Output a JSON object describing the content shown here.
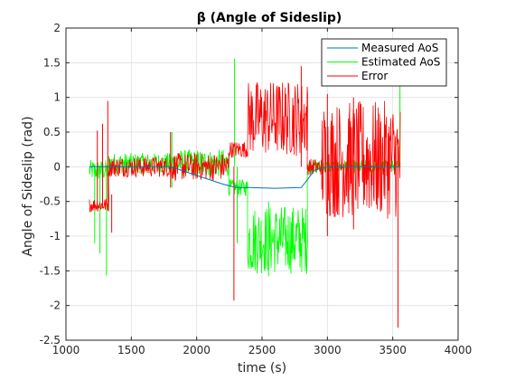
{
  "chart_data": {
    "type": "line",
    "title": "β (Angle of Sideslip)",
    "xlabel": "time (s)",
    "ylabel": "Angle of Sideslip (rad)",
    "xlim": [
      1000,
      4000
    ],
    "ylim": [
      -2.5,
      2
    ],
    "xticks": [
      1000,
      1500,
      2000,
      2500,
      3000,
      3500,
      4000
    ],
    "yticks": [
      -2.5,
      -2,
      -1.5,
      -1,
      -0.5,
      0,
      0.5,
      1,
      1.5,
      2
    ],
    "grid": true,
    "legend_position": "top-right",
    "colors": {
      "measured": "#0072BD",
      "estimated": "#00FF00",
      "error": "#FF0000"
    },
    "series": [
      {
        "name": "Measured AoS",
        "color": "#0072BD",
        "style": "line",
        "x": [
          1180,
          1400,
          1800,
          2200,
          2300,
          2400,
          2600,
          2800,
          2850,
          2900,
          3000,
          3200,
          3400,
          3560
        ],
        "y": [
          0,
          0,
          0,
          -0.25,
          -0.3,
          -0.3,
          -0.31,
          -0.3,
          -0.18,
          -0.05,
          0,
          0,
          0,
          0
        ]
      },
      {
        "name": "Estimated AoS",
        "color": "#00FF00",
        "style": "noisy-band",
        "segments": [
          {
            "x0": 1180,
            "x1": 1330,
            "center": -0.05,
            "amp": 0.15
          },
          {
            "x0": 1330,
            "x1": 1800,
            "center": 0.05,
            "amp": 0.15
          },
          {
            "x0": 1800,
            "x1": 2250,
            "center": 0.05,
            "amp": 0.2
          },
          {
            "x0": 2250,
            "x1": 2390,
            "center": -0.3,
            "amp": 0.12
          },
          {
            "x0": 2390,
            "x1": 2850,
            "center": -1.05,
            "amp": 0.5
          },
          {
            "x0": 2850,
            "x1": 3560,
            "center": 0.0,
            "amp": 0.1
          }
        ],
        "spikes": [
          {
            "x": 1220,
            "lo": -1.1,
            "hi": 0.0
          },
          {
            "x": 1260,
            "lo": -1.25,
            "hi": 0.0
          },
          {
            "x": 1310,
            "lo": -1.57,
            "hi": 0.0
          },
          {
            "x": 1810,
            "lo": -0.3,
            "hi": 0.5
          },
          {
            "x": 2290,
            "lo": 0.0,
            "hi": 1.56
          },
          {
            "x": 2310,
            "lo": -1.1,
            "hi": 0.0
          },
          {
            "x": 2550,
            "lo": -1.58,
            "hi": -0.5
          },
          {
            "x": 3555,
            "lo": 0.0,
            "hi": 1.2
          }
        ]
      },
      {
        "name": "Error",
        "color": "#FF0000",
        "style": "noisy-band",
        "segments": [
          {
            "x0": 1180,
            "x1": 1330,
            "center": -0.55,
            "amp": 0.1
          },
          {
            "x0": 1330,
            "x1": 1800,
            "center": 0.0,
            "amp": 0.15
          },
          {
            "x0": 1800,
            "x1": 2250,
            "center": 0.0,
            "amp": 0.2
          },
          {
            "x0": 2250,
            "x1": 2390,
            "center": 0.25,
            "amp": 0.12
          },
          {
            "x0": 2390,
            "x1": 2850,
            "center": 0.7,
            "amp": 0.55
          },
          {
            "x0": 2850,
            "x1": 2960,
            "center": 0.0,
            "amp": 0.12
          },
          {
            "x0": 2960,
            "x1": 3560,
            "center": 0.1,
            "amp": 0.85
          }
        ],
        "spikes": [
          {
            "x": 1240,
            "lo": -0.6,
            "hi": 0.52
          },
          {
            "x": 1280,
            "lo": -0.6,
            "hi": 0.62
          },
          {
            "x": 1320,
            "lo": -0.6,
            "hi": 0.95
          },
          {
            "x": 1350,
            "lo": -0.95,
            "hi": -0.4
          },
          {
            "x": 1800,
            "lo": -0.3,
            "hi": 0.5
          },
          {
            "x": 2285,
            "lo": -1.93,
            "hi": 0.0
          },
          {
            "x": 2800,
            "lo": 0.0,
            "hi": 1.45
          },
          {
            "x": 3000,
            "lo": -1.0,
            "hi": 1.05
          },
          {
            "x": 3200,
            "lo": -0.9,
            "hi": 1.0
          },
          {
            "x": 3540,
            "lo": -2.32,
            "hi": 0.3
          }
        ]
      }
    ]
  }
}
